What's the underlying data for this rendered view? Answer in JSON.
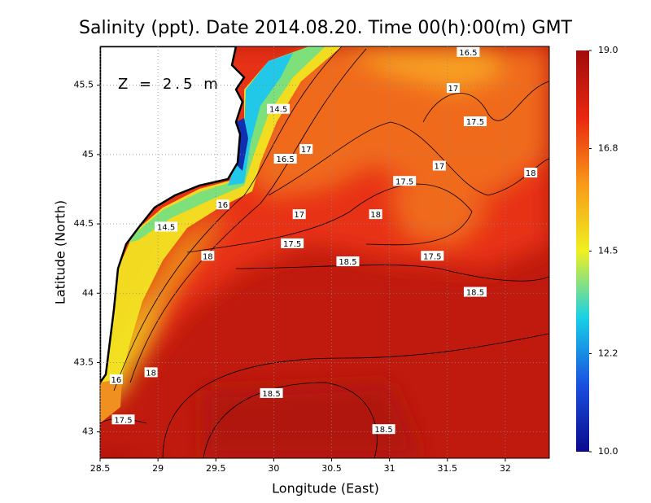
{
  "chart_data": {
    "type": "contour-map",
    "title": "Salinity (ppt). Date 2014.08.20. Time 00(h):00(m) GMT",
    "x_label": "Longitude (East)",
    "y_label": "Latitude (North)",
    "annotation": "Z = 2.5 m",
    "xlim": [
      28.5,
      32.38
    ],
    "ylim": [
      42.81,
      45.78
    ],
    "xticks": [
      28.5,
      29,
      29.5,
      30,
      30.5,
      31,
      31.5,
      32
    ],
    "yticks": [
      43,
      43.5,
      44,
      44.5,
      45,
      45.5
    ],
    "grid": true,
    "colorbar": {
      "lim": [
        10,
        19
      ],
      "ticks": [
        {
          "value": 10,
          "label": "10.0"
        },
        12.2,
        14.5,
        16.8,
        {
          "value": 19,
          "label": "19.0"
        }
      ],
      "colors": [
        "#0a0a8c",
        "#1a50e0",
        "#18d0e8",
        "#f0f020",
        "#f89a18",
        "#e82810",
        "#a00c0c"
      ]
    },
    "contour_labels": [
      {
        "lon": 31.68,
        "lat": 45.74,
        "value": 16.5
      },
      {
        "lon": 31.55,
        "lat": 45.48,
        "value": 17
      },
      {
        "lon": 31.74,
        "lat": 45.24,
        "value": 17.5
      },
      {
        "lon": 31.43,
        "lat": 44.92,
        "value": 17
      },
      {
        "lon": 32.22,
        "lat": 44.87,
        "value": 18
      },
      {
        "lon": 31.13,
        "lat": 44.81,
        "value": 17.5
      },
      {
        "lon": 30.04,
        "lat": 45.33,
        "value": 14.5
      },
      {
        "lon": 30.28,
        "lat": 45.04,
        "value": 17
      },
      {
        "lon": 30.1,
        "lat": 44.97,
        "value": 16.5
      },
      {
        "lon": 30.22,
        "lat": 44.57,
        "value": 17
      },
      {
        "lon": 30.88,
        "lat": 44.57,
        "value": 18
      },
      {
        "lon": 30.16,
        "lat": 44.36,
        "value": 17.5
      },
      {
        "lon": 29.43,
        "lat": 44.27,
        "value": 18
      },
      {
        "lon": 30.64,
        "lat": 44.23,
        "value": 18.5
      },
      {
        "lon": 31.37,
        "lat": 44.27,
        "value": 17.5
      },
      {
        "lon": 31.74,
        "lat": 44.01,
        "value": 18.5
      },
      {
        "lon": 29.07,
        "lat": 44.48,
        "value": 14.5
      },
      {
        "lon": 29.56,
        "lat": 44.64,
        "value": 16
      },
      {
        "lon": 28.94,
        "lat": 43.43,
        "value": 18
      },
      {
        "lon": 28.64,
        "lat": 43.38,
        "value": 16
      },
      {
        "lon": 29.98,
        "lat": 43.28,
        "value": 18.5
      },
      {
        "lon": 30.95,
        "lat": 43.02,
        "value": 18.5
      },
      {
        "lon": 28.7,
        "lat": 43.09,
        "value": 17.5
      }
    ]
  }
}
